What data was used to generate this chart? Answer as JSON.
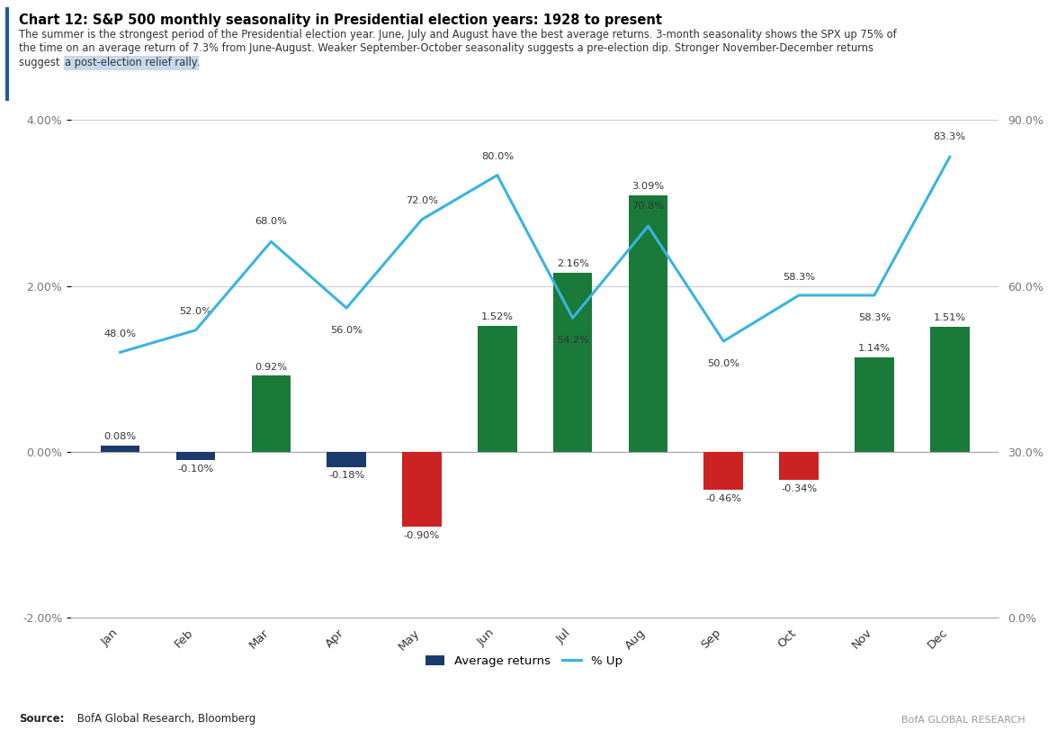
{
  "months": [
    "Jan",
    "Feb",
    "Mar",
    "Apr",
    "May",
    "Jun",
    "Jul",
    "Aug",
    "Sep",
    "Oct",
    "Nov",
    "Dec"
  ],
  "avg_returns": [
    0.08,
    -0.1,
    0.92,
    -0.18,
    -0.9,
    1.52,
    2.16,
    3.09,
    -0.46,
    -0.34,
    1.14,
    1.51
  ],
  "pct_up": [
    48.0,
    52.0,
    68.0,
    56.0,
    72.0,
    80.0,
    54.2,
    70.8,
    50.0,
    58.3,
    58.3,
    83.3
  ],
  "bar_colors": [
    "#1a3a6b",
    "#1a3a6b",
    "#1a7a3a",
    "#1a3a6b",
    "#cc2222",
    "#1a7a3a",
    "#1a7a3a",
    "#1a7a3a",
    "#cc2222",
    "#cc2222",
    "#1a7a3a",
    "#1a7a3a"
  ],
  "line_color": "#3ab4e0",
  "title": "Chart 12: S&P 500 monthly seasonality in Presidential election years: 1928 to present",
  "subtitle_line1": "The summer is the strongest period of the Presidential election year. June, July and August have the best average returns. 3-month seasonality shows the SPX up 75% of",
  "subtitle_line2": "the time on an average return of 7.3% from June-August. Weaker September-October seasonality suggests a pre-election dip. Stronger November-December returns",
  "subtitle_line3_before": "suggest ",
  "subtitle_line3_highlight": "a post-election relief rally",
  "subtitle_line3_after": ".",
  "source_label": "Source:",
  "source_body": " BofA Global Research, Bloomberg",
  "watermark": "BofA GLOBAL RESEARCH",
  "ylim_left": [
    -2.0,
    4.0
  ],
  "ylim_right": [
    0.0,
    90.0
  ],
  "yticks_left": [
    -2.0,
    0.0,
    2.0,
    4.0
  ],
  "yticks_right": [
    0.0,
    30.0,
    60.0,
    90.0
  ],
  "background_color": "#ffffff",
  "grid_color": "#cccccc",
  "highlight_color": "#b8d0e8",
  "sidebar_color": "#2255aa",
  "bar_label_color": "#333333",
  "pct_label_color": "#333333",
  "axis_tick_color": "#777777"
}
